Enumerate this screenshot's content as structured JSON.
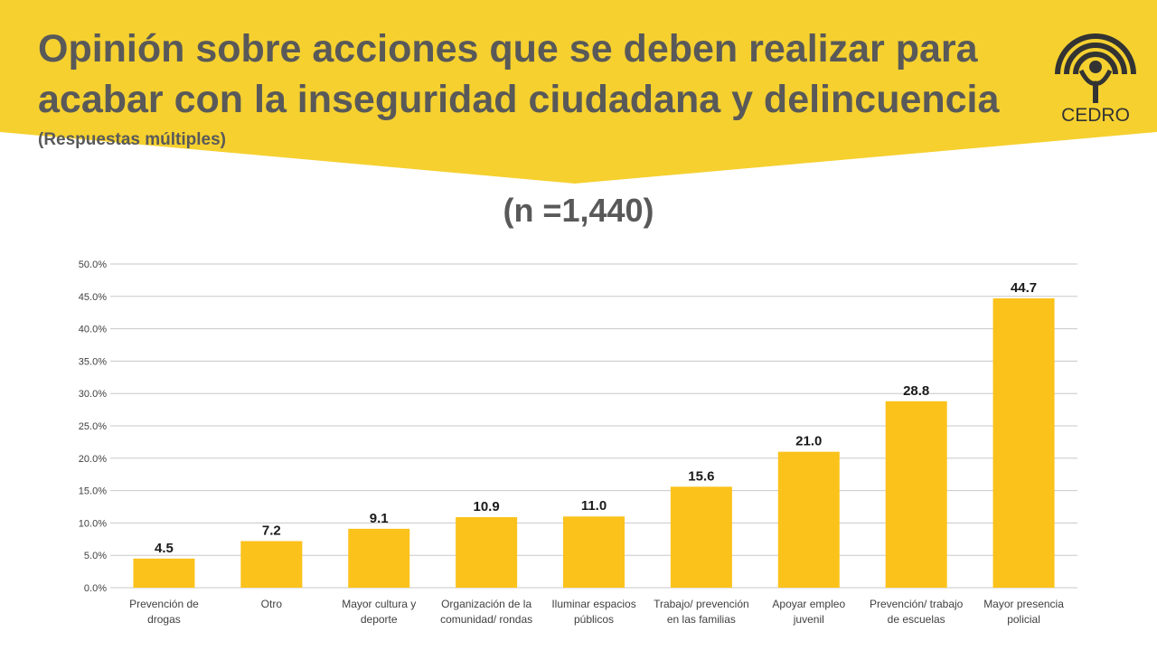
{
  "header": {
    "title_line1": "Opinión sobre acciones que se deben realizar para",
    "title_line2": "acabar con la inseguridad ciudadana y delincuencia",
    "subtitle": "(Respuestas múltiples)",
    "banner_color": "#F5D02F"
  },
  "sample_size": "(n =1,440)",
  "logo": {
    "text": "CEDRO",
    "icon": "cedro-logo-icon"
  },
  "chart_data": {
    "type": "bar",
    "categories": [
      [
        "Prevención de",
        "drogas"
      ],
      [
        "Otro"
      ],
      [
        "Mayor cultura y",
        "deporte"
      ],
      [
        "Organización de la",
        "comunidad/ rondas"
      ],
      [
        "Iluminar espacios",
        "públicos"
      ],
      [
        "Trabajo/ prevención",
        "en las familias"
      ],
      [
        "Apoyar empleo",
        "juvenil"
      ],
      [
        "Prevención/ trabajo",
        "de escuelas"
      ],
      [
        "Mayor presencia",
        "policial"
      ]
    ],
    "values": [
      4.5,
      7.2,
      9.1,
      10.9,
      11.0,
      15.6,
      21.0,
      28.8,
      44.7
    ],
    "data_labels": [
      "4.5",
      "7.2",
      "9.1",
      "10.9",
      "11.0",
      "15.6",
      "21.0",
      "28.8",
      "44.7"
    ],
    "ylim": [
      0,
      50
    ],
    "yticks": [
      0,
      5,
      10,
      15,
      20,
      25,
      30,
      35,
      40,
      45,
      50
    ],
    "ytick_labels": [
      "0.0%",
      "5.0%",
      "10.0%",
      "15.0%",
      "20.0%",
      "25.0%",
      "30.0%",
      "35.0%",
      "40.0%",
      "45.0%",
      "50.0%"
    ],
    "bar_color": "#FBC21B",
    "grid_color": "#C8C8C8",
    "grid": true
  }
}
